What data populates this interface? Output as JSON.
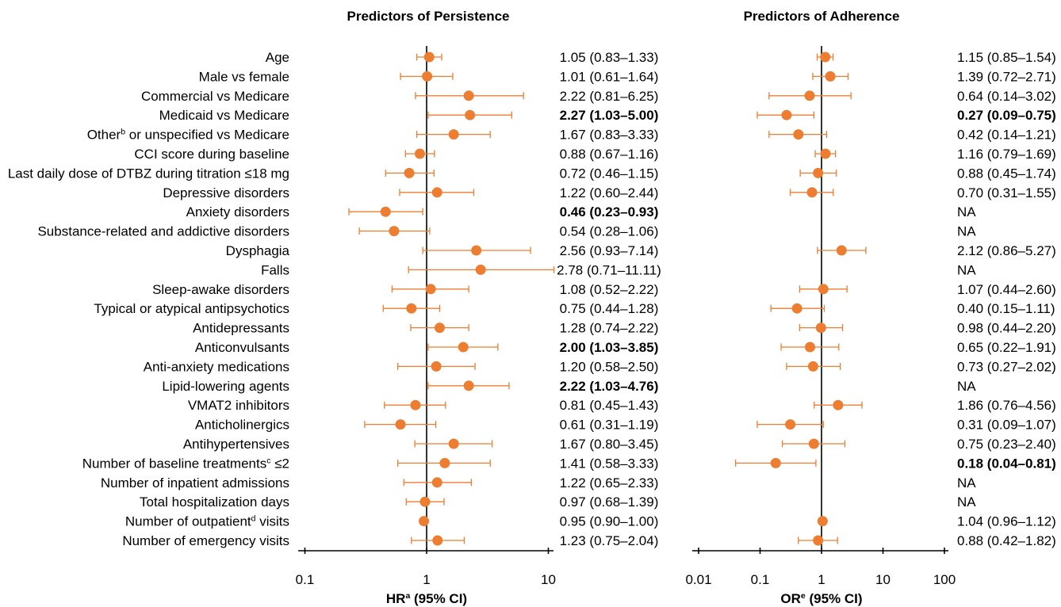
{
  "chart_data": {
    "type": "scatter",
    "grid": false,
    "marker_color": "#ED7D31",
    "categories": [
      {
        "pre": "Age"
      },
      {
        "pre": "Male vs female"
      },
      {
        "pre": "Commercial vs Medicare"
      },
      {
        "pre": "Medicaid vs Medicare"
      },
      {
        "pre": "Other",
        "sup": "b",
        "post": " or unspecified vs Medicare"
      },
      {
        "pre": "CCI score during baseline"
      },
      {
        "pre": "Last daily dose of DTBZ during titration ≤18 mg"
      },
      {
        "pre": "Depressive disorders"
      },
      {
        "pre": "Anxiety disorders"
      },
      {
        "pre": "Substance-related and addictive disorders"
      },
      {
        "pre": "Dysphagia"
      },
      {
        "pre": "Falls"
      },
      {
        "pre": "Sleep-awake disorders"
      },
      {
        "pre": "Typical or atypical antipsychotics"
      },
      {
        "pre": "Antidepressants"
      },
      {
        "pre": "Anticonvulsants"
      },
      {
        "pre": "Anti-anxiety medications"
      },
      {
        "pre": "Lipid-lowering agents"
      },
      {
        "pre": "VMAT2 inhibitors"
      },
      {
        "pre": "Anticholinergics"
      },
      {
        "pre": "Antihypertensives"
      },
      {
        "pre": "Number of baseline treatments",
        "sup": "c",
        "post": " ≤2"
      },
      {
        "pre": "Number of inpatient admissions"
      },
      {
        "pre": "Total hospitalization days"
      },
      {
        "pre": "Number of outpatient",
        "sup": "d",
        "post": " visits"
      },
      {
        "pre": "Number of emergency visits"
      }
    ],
    "panels": [
      {
        "title": "Predictors of Persistence",
        "xlabel": {
          "pre": "HR",
          "sup": "a",
          "post": " (95% CI)"
        },
        "x_scale": "log",
        "xlim": [
          0.1,
          10
        ],
        "xticks": [
          0.1,
          1,
          10
        ],
        "xtick_labels": [
          "0.1",
          "1",
          "10"
        ],
        "reference_x": 1,
        "values": [
          {
            "est": 1.05,
            "lo": 0.83,
            "hi": 1.33,
            "label": "1.05 (0.83–1.33)"
          },
          {
            "est": 1.01,
            "lo": 0.61,
            "hi": 1.64,
            "label": "1.01 (0.61–1.64)"
          },
          {
            "est": 2.22,
            "lo": 0.81,
            "hi": 6.25,
            "label": "2.22 (0.81–6.25)"
          },
          {
            "est": 2.27,
            "lo": 1.03,
            "hi": 5.0,
            "label": "2.27 (1.03–5.00)",
            "bold": true
          },
          {
            "est": 1.67,
            "lo": 0.83,
            "hi": 3.33,
            "label": "1.67 (0.83–3.33)"
          },
          {
            "est": 0.88,
            "lo": 0.67,
            "hi": 1.16,
            "label": "0.88 (0.67–1.16)"
          },
          {
            "est": 0.72,
            "lo": 0.46,
            "hi": 1.15,
            "label": "0.72 (0.46–1.15)"
          },
          {
            "est": 1.22,
            "lo": 0.6,
            "hi": 2.44,
            "label": "1.22 (0.60–2.44)"
          },
          {
            "est": 0.46,
            "lo": 0.23,
            "hi": 0.93,
            "label": "0.46 (0.23–0.93)",
            "bold": true
          },
          {
            "est": 0.54,
            "lo": 0.28,
            "hi": 1.06,
            "label": "0.54 (0.28–1.06)"
          },
          {
            "est": 2.56,
            "lo": 0.93,
            "hi": 7.14,
            "label": "2.56 (0.93–7.14)"
          },
          {
            "est": 2.78,
            "lo": 0.71,
            "hi": 11.11,
            "label": "2.78 (0.71–11.11)"
          },
          {
            "est": 1.08,
            "lo": 0.52,
            "hi": 2.22,
            "label": "1.08 (0.52–2.22)"
          },
          {
            "est": 0.75,
            "lo": 0.44,
            "hi": 1.28,
            "label": "0.75 (0.44–1.28)"
          },
          {
            "est": 1.28,
            "lo": 0.74,
            "hi": 2.22,
            "label": "1.28 (0.74–2.22)"
          },
          {
            "est": 2.0,
            "lo": 1.03,
            "hi": 3.85,
            "label": "2.00 (1.03–3.85)",
            "bold": true
          },
          {
            "est": 1.2,
            "lo": 0.58,
            "hi": 2.5,
            "label": "1.20 (0.58–2.50)"
          },
          {
            "est": 2.22,
            "lo": 1.03,
            "hi": 4.76,
            "label": "2.22 (1.03–4.76)",
            "bold": true
          },
          {
            "est": 0.81,
            "lo": 0.45,
            "hi": 1.43,
            "label": "0.81 (0.45–1.43)"
          },
          {
            "est": 0.61,
            "lo": 0.31,
            "hi": 1.19,
            "label": "0.61 (0.31–1.19)"
          },
          {
            "est": 1.67,
            "lo": 0.8,
            "hi": 3.45,
            "label": "1.67 (0.80–3.45)"
          },
          {
            "est": 1.41,
            "lo": 0.58,
            "hi": 3.33,
            "label": "1.41 (0.58–3.33)"
          },
          {
            "est": 1.22,
            "lo": 0.65,
            "hi": 2.33,
            "label": "1.22 (0.65–2.33)"
          },
          {
            "est": 0.97,
            "lo": 0.68,
            "hi": 1.39,
            "label": "0.97 (0.68–1.39)"
          },
          {
            "est": 0.95,
            "lo": 0.9,
            "hi": 1.0,
            "label": "0.95 (0.90–1.00)"
          },
          {
            "est": 1.23,
            "lo": 0.75,
            "hi": 2.04,
            "label": "1.23 (0.75–2.04)"
          }
        ]
      },
      {
        "title": "Predictors of Adherence",
        "xlabel": {
          "pre": "OR",
          "sup": "e",
          "post": " (95% CI)"
        },
        "x_scale": "log",
        "xlim": [
          0.01,
          100
        ],
        "xticks": [
          0.01,
          0.1,
          1,
          10,
          100
        ],
        "xtick_labels": [
          "0.01",
          "0.1",
          "1",
          "10",
          "100"
        ],
        "reference_x": 1,
        "values": [
          {
            "est": 1.15,
            "lo": 0.85,
            "hi": 1.54,
            "label": "1.15 (0.85–1.54)"
          },
          {
            "est": 1.39,
            "lo": 0.72,
            "hi": 2.71,
            "label": "1.39 (0.72–2.71)"
          },
          {
            "est": 0.64,
            "lo": 0.14,
            "hi": 3.02,
            "label": "0.64 (0.14–3.02)"
          },
          {
            "est": 0.27,
            "lo": 0.09,
            "hi": 0.75,
            "label": "0.27 (0.09–0.75)",
            "bold": true
          },
          {
            "est": 0.42,
            "lo": 0.14,
            "hi": 1.21,
            "label": "0.42 (0.14–1.21)"
          },
          {
            "est": 1.16,
            "lo": 0.79,
            "hi": 1.69,
            "label": "1.16 (0.79–1.69)"
          },
          {
            "est": 0.88,
            "lo": 0.45,
            "hi": 1.74,
            "label": "0.88 (0.45–1.74)"
          },
          {
            "est": 0.7,
            "lo": 0.31,
            "hi": 1.55,
            "label": "0.70 (0.31–1.55)"
          },
          {
            "est": null,
            "lo": null,
            "hi": null,
            "label": "NA"
          },
          {
            "est": null,
            "lo": null,
            "hi": null,
            "label": "NA"
          },
          {
            "est": 2.12,
            "lo": 0.86,
            "hi": 5.27,
            "label": "2.12 (0.86–5.27)"
          },
          {
            "est": null,
            "lo": null,
            "hi": null,
            "label": "NA"
          },
          {
            "est": 1.07,
            "lo": 0.44,
            "hi": 2.6,
            "label": "1.07 (0.44–2.60)"
          },
          {
            "est": 0.4,
            "lo": 0.15,
            "hi": 1.11,
            "label": "0.40 (0.15–1.11)"
          },
          {
            "est": 0.98,
            "lo": 0.44,
            "hi": 2.2,
            "label": "0.98 (0.44–2.20)"
          },
          {
            "est": 0.65,
            "lo": 0.22,
            "hi": 1.91,
            "label": "0.65 (0.22–1.91)"
          },
          {
            "est": 0.73,
            "lo": 0.27,
            "hi": 2.02,
            "label": "0.73 (0.27–2.02)"
          },
          {
            "est": null,
            "lo": null,
            "hi": null,
            "label": "NA"
          },
          {
            "est": 1.86,
            "lo": 0.76,
            "hi": 4.56,
            "label": "1.86 (0.76–4.56)"
          },
          {
            "est": 0.31,
            "lo": 0.09,
            "hi": 1.07,
            "label": "0.31 (0.09–1.07)"
          },
          {
            "est": 0.75,
            "lo": 0.23,
            "hi": 2.4,
            "label": "0.75 (0.23–2.40)"
          },
          {
            "est": 0.18,
            "lo": 0.04,
            "hi": 0.81,
            "label": "0.18 (0.04–0.81)",
            "bold": true
          },
          {
            "est": null,
            "lo": null,
            "hi": null,
            "label": "NA"
          },
          {
            "est": null,
            "lo": null,
            "hi": null,
            "label": "NA"
          },
          {
            "est": 1.04,
            "lo": 0.96,
            "hi": 1.12,
            "label": "1.04 (0.96–1.12)"
          },
          {
            "est": 0.88,
            "lo": 0.42,
            "hi": 1.82,
            "label": "0.88 (0.42–1.82)"
          }
        ]
      }
    ]
  }
}
